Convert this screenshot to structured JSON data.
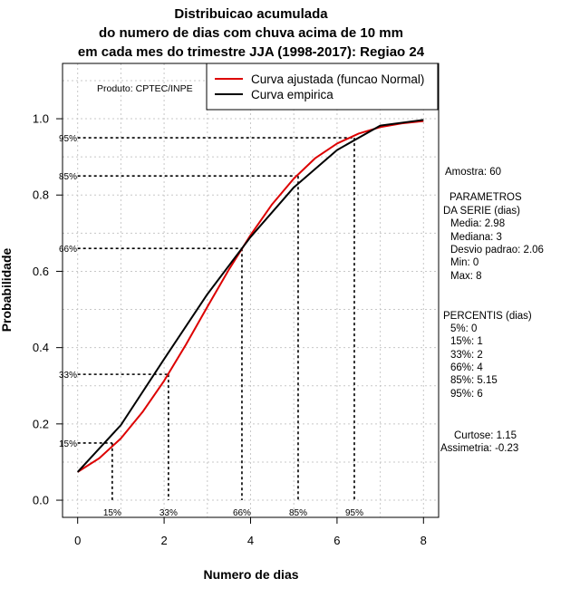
{
  "chart_data": {
    "type": "line",
    "title": [
      "Distribuicao acumulada",
      "do numero de dias com chuva acima de 10 mm",
      "em cada mes do trimestre JJA (1998-2017): Regiao 24"
    ],
    "xlabel": "Numero de dias",
    "ylabel": "Probabilidade",
    "xlim": [
      -0.35,
      8.35
    ],
    "ylim": [
      -0.045,
      1.145
    ],
    "xticks": [
      "0",
      "2",
      "4",
      "6",
      "8"
    ],
    "xtick_values": [
      0,
      2,
      4,
      6,
      8
    ],
    "yticks": [
      "0.0",
      "0.2",
      "0.4",
      "0.6",
      "0.8",
      "1.0"
    ],
    "ytick_values": [
      0.0,
      0.2,
      0.4,
      0.6,
      0.8,
      1.0
    ],
    "grid": true,
    "product_label": "Produto: CPTEC/INPE",
    "legend": {
      "position": "top-right",
      "entries": [
        {
          "label": "Curva ajustada (funcao Normal)",
          "color": "#dd0000"
        },
        {
          "label": "Curva empirica",
          "color": "#000000"
        }
      ]
    },
    "series": [
      {
        "name": "Curva ajustada (funcao Normal)",
        "color": "#dd0000",
        "x": [
          0,
          0.5,
          1,
          1.5,
          2,
          2.5,
          3,
          3.5,
          4,
          4.5,
          5,
          5.5,
          6,
          6.5,
          7,
          7.5,
          8
        ],
        "y": [
          0.074,
          0.11,
          0.162,
          0.231,
          0.313,
          0.407,
          0.507,
          0.605,
          0.695,
          0.776,
          0.843,
          0.897,
          0.935,
          0.961,
          0.978,
          0.988,
          0.994
        ]
      },
      {
        "name": "Curva empirica",
        "color": "#000000",
        "x": [
          0,
          1,
          2,
          3,
          4,
          5,
          6,
          7,
          8
        ],
        "y": [
          0.074,
          0.197,
          0.37,
          0.54,
          0.69,
          0.82,
          0.918,
          0.982,
          0.997
        ]
      }
    ],
    "percentiles": [
      {
        "label": "15%",
        "prob": 0.15,
        "x": 0.8
      },
      {
        "label": "33%",
        "prob": 0.33,
        "x": 2.1
      },
      {
        "label": "66%",
        "prob": 0.66,
        "x": 3.8
      },
      {
        "label": "85%",
        "prob": 0.85,
        "x": 5.1
      },
      {
        "label": "95%",
        "prob": 0.95,
        "x": 6.4
      }
    ],
    "stats_panel": [
      "Amostra: 60",
      "PARAMETROS",
      "DA SERIE (dias)",
      "Media: 2.98",
      "Mediana: 3",
      "Desvio padrao: 2.06",
      "Min: 0",
      "Max: 8",
      "PERCENTIS (dias)",
      "5%: 0",
      "15%: 1",
      "33%: 2",
      "66%: 4",
      "85%: 5.15",
      "95%: 6",
      "Curtose: 1.15",
      "Assimetria: -0.23"
    ]
  }
}
